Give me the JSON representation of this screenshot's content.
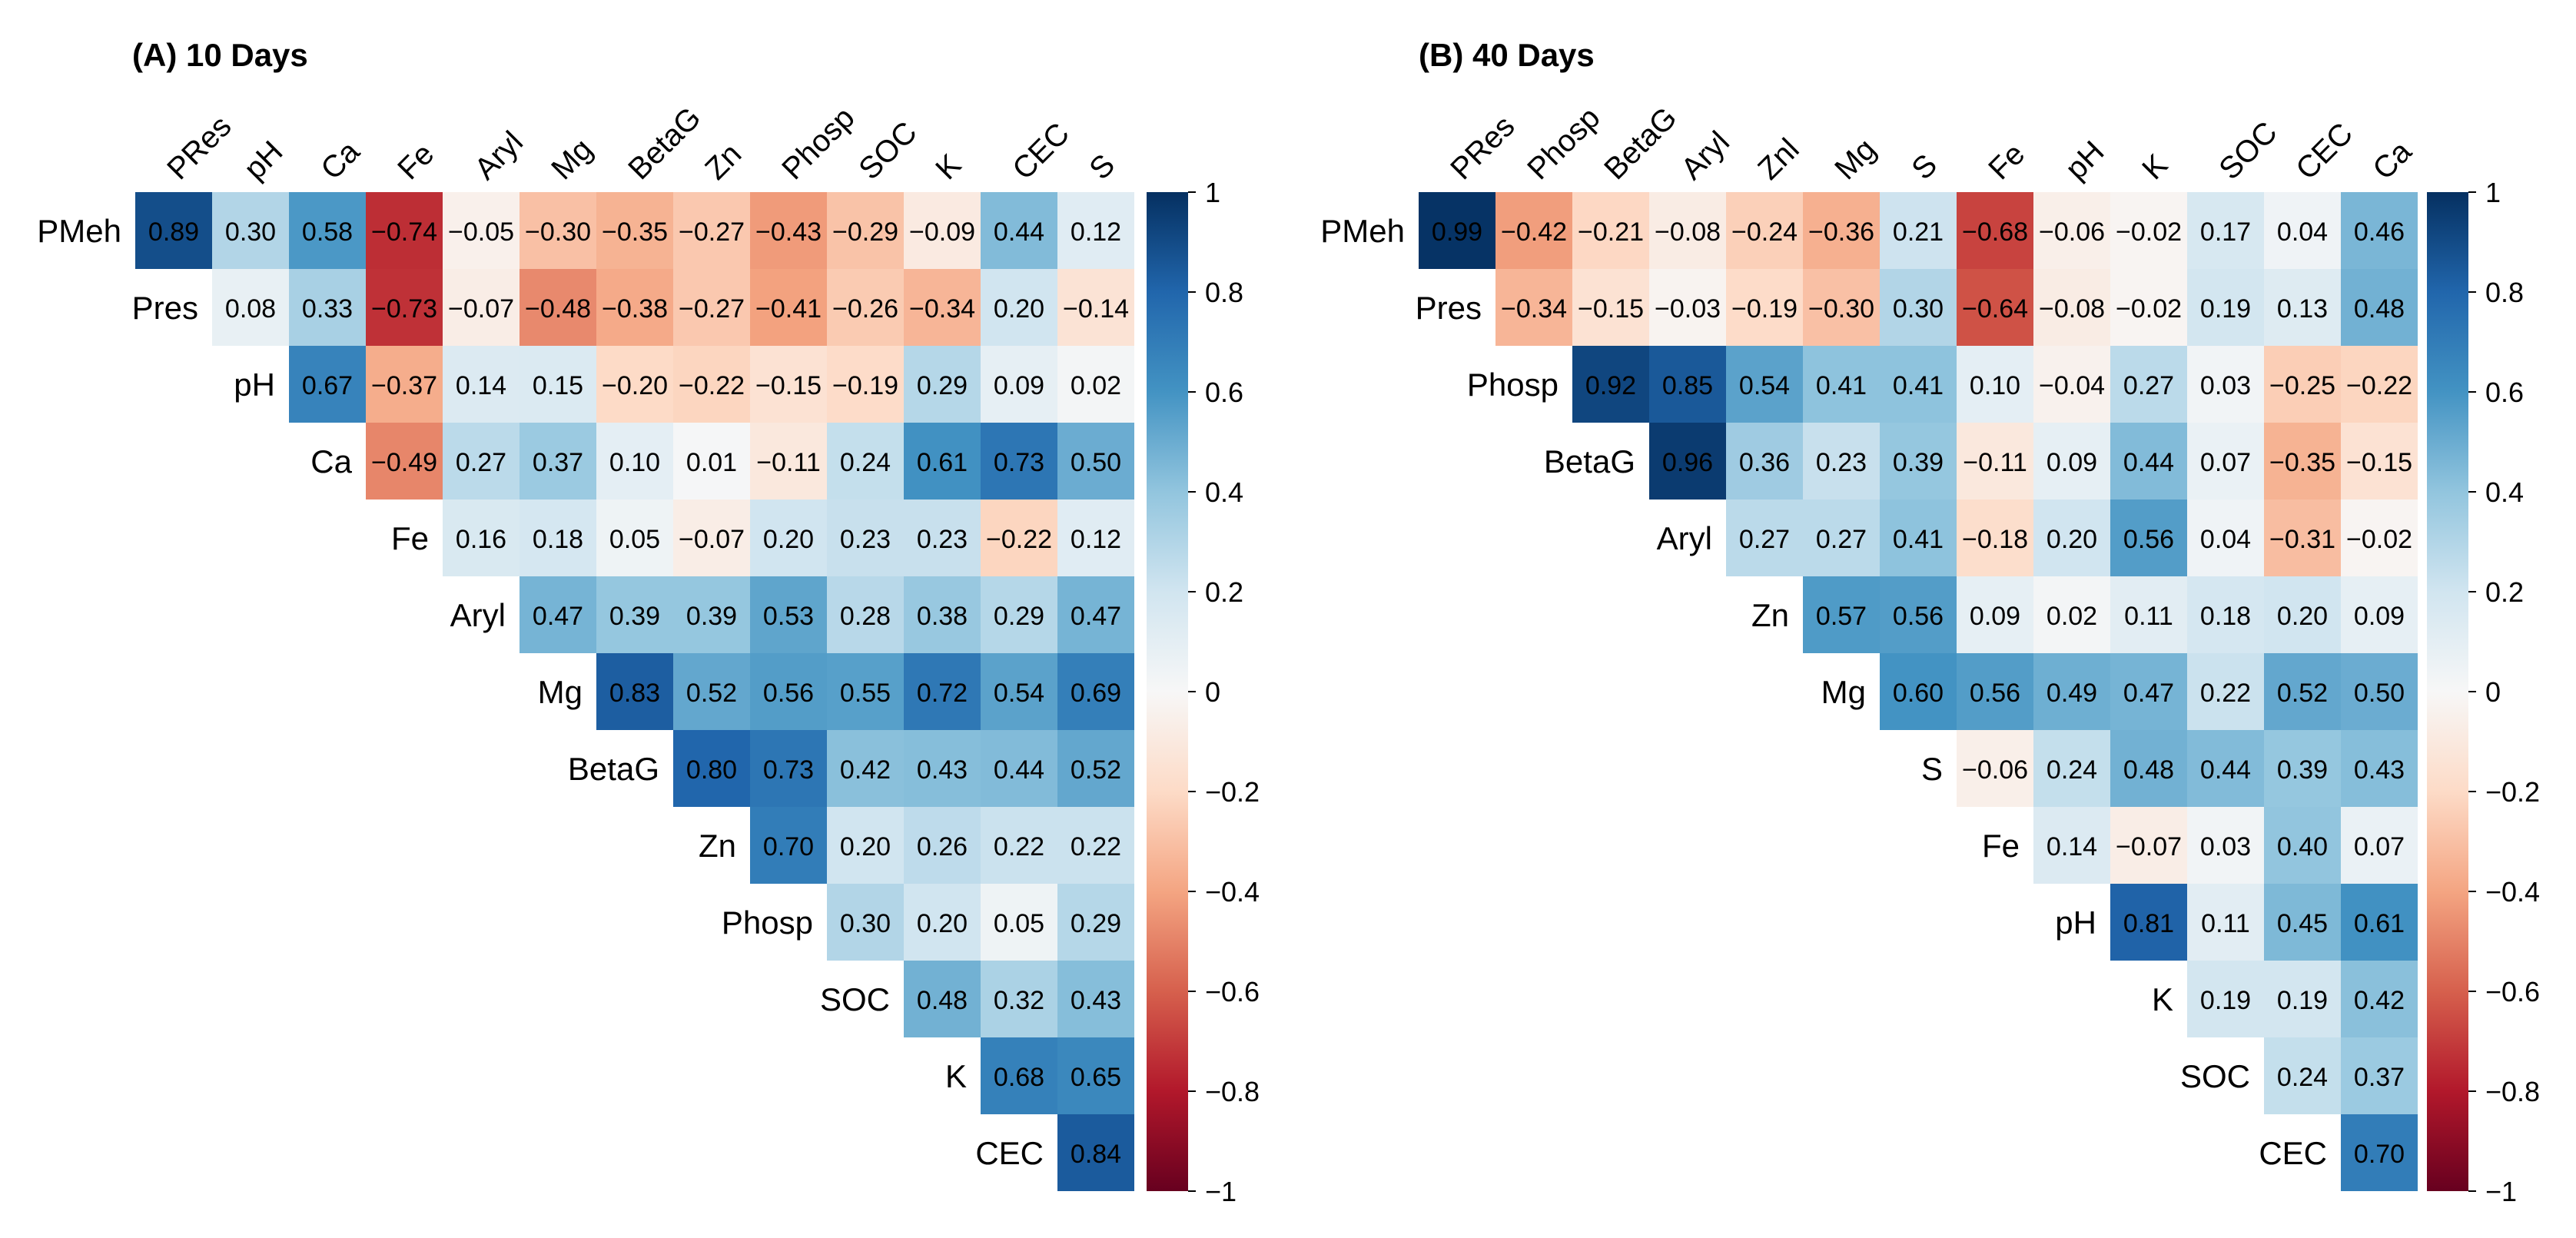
{
  "chart_data": [
    {
      "type": "heatmap",
      "title": "(A) 10 Days",
      "rows": [
        "PMeh",
        "Pres",
        "pH",
        "Ca",
        "Fe",
        "Aryl",
        "Mg",
        "BetaG",
        "Zn",
        "Phosp",
        "SOC",
        "K",
        "CEC"
      ],
      "columns": [
        "PRes",
        "pH",
        "Ca",
        "Fe",
        "Aryl",
        "Mg",
        "BetaG",
        "Zn",
        "Phosp",
        "SOC",
        "K",
        "CEC",
        "S"
      ],
      "values": [
        [
          "0.89",
          "0.30",
          "0.58",
          "−0.74",
          "−0.05",
          "−0.30",
          "−0.35",
          "−0.27",
          "−0.43",
          "−0.29",
          "−0.09",
          "0.44",
          "0.12"
        ],
        [
          "0.08",
          "0.33",
          "−0.73",
          "−0.07",
          "−0.48",
          "−0.38",
          "−0.27",
          "−0.41",
          "−0.26",
          "−0.34",
          "0.20",
          "−0.14"
        ],
        [
          "0.67",
          "−0.37",
          "0.14",
          "0.15",
          "−0.20",
          "−0.22",
          "−0.15",
          "−0.19",
          "0.29",
          "0.09",
          "0.02"
        ],
        [
          "−0.49",
          "0.27",
          "0.37",
          "0.10",
          "0.01",
          "−0.11",
          "0.24",
          "0.61",
          "0.73",
          "0.50"
        ],
        [
          "0.16",
          "0.18",
          "0.05",
          "−0.07",
          "0.20",
          "0.23",
          "0.23",
          "−0.22",
          "0.12"
        ],
        [
          "0.47",
          "0.39",
          "0.39",
          "0.53",
          "0.28",
          "0.38",
          "0.29",
          "0.47"
        ],
        [
          "0.83",
          "0.52",
          "0.56",
          "0.55",
          "0.72",
          "0.54",
          "0.69"
        ],
        [
          "0.80",
          "0.73",
          "0.42",
          "0.43",
          "0.44",
          "0.52"
        ],
        [
          "0.70",
          "0.20",
          "0.26",
          "0.22",
          "0.22"
        ],
        [
          "0.30",
          "0.20",
          "0.05",
          "0.29"
        ],
        [
          "0.48",
          "0.32",
          "0.43"
        ],
        [
          "0.68",
          "0.65"
        ],
        [
          "0.84"
        ]
      ],
      "colorbar_ticks": [
        "1",
        "0.8",
        "0.6",
        "0.4",
        "0.2",
        "0",
        "−0.2",
        "−0.4",
        "−0.6",
        "−0.8",
        "−1"
      ],
      "colorbar_range": [
        -1,
        1
      ]
    },
    {
      "type": "heatmap",
      "title": "(B) 40 Days",
      "rows": [
        "PMeh",
        "Pres",
        "Phosp",
        "BetaG",
        "Aryl",
        "Zn",
        "Mg",
        "S",
        "Fe",
        "pH",
        "K",
        "SOC",
        "CEC"
      ],
      "columns": [
        "PRes",
        "Phosp",
        "BetaG",
        "Aryl",
        "Znl",
        "Mg",
        "S",
        "Fe",
        "pH",
        "K",
        "SOC",
        "CEC",
        "Ca"
      ],
      "values": [
        [
          "0.99",
          "−0.42",
          "−0.21",
          "−0.08",
          "−0.24",
          "−0.36",
          "0.21",
          "−0.68",
          "−0.06",
          "−0.02",
          "0.17",
          "0.04",
          "0.46"
        ],
        [
          "−0.34",
          "−0.15",
          "−0.03",
          "−0.19",
          "−0.30",
          "0.30",
          "−0.64",
          "−0.08",
          "−0.02",
          "0.19",
          "0.13",
          "0.48"
        ],
        [
          "0.92",
          "0.85",
          "0.54",
          "0.41",
          "0.41",
          "0.10",
          "−0.04",
          "0.27",
          "0.03",
          "−0.25",
          "−0.22"
        ],
        [
          "0.96",
          "0.36",
          "0.23",
          "0.39",
          "−0.11",
          "0.09",
          "0.44",
          "0.07",
          "−0.35",
          "−0.15"
        ],
        [
          "0.27",
          "0.27",
          "0.41",
          "−0.18",
          "0.20",
          "0.56",
          "0.04",
          "−0.31",
          "−0.02"
        ],
        [
          "0.57",
          "0.56",
          "0.09",
          "0.02",
          "0.11",
          "0.18",
          "0.20",
          "0.09"
        ],
        [
          "0.60",
          "0.56",
          "0.49",
          "0.47",
          "0.22",
          "0.52",
          "0.50"
        ],
        [
          "−0.06",
          "0.24",
          "0.48",
          "0.44",
          "0.39",
          "0.43"
        ],
        [
          "0.14",
          "−0.07",
          "0.03",
          "0.40",
          "0.07"
        ],
        [
          "0.81",
          "0.11",
          "0.45",
          "0.61"
        ],
        [
          "0.19",
          "0.19",
          "0.42"
        ],
        [
          "0.24",
          "0.37"
        ],
        [
          "0.70"
        ]
      ],
      "colorbar_ticks": [
        "1",
        "0.8",
        "0.6",
        "0.4",
        "0.2",
        "0",
        "−0.2",
        "−0.4",
        "−0.6",
        "−0.8",
        "−1"
      ],
      "colorbar_range": [
        -1,
        1
      ]
    }
  ]
}
